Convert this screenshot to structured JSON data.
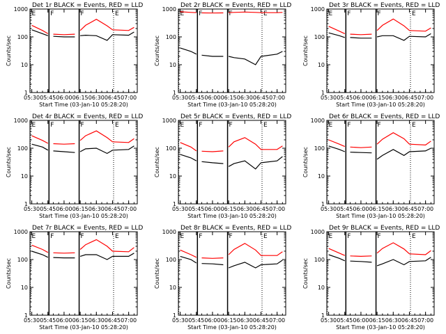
{
  "figure": {
    "xlabel": "Start Time (03-Jan-10 05:28:20)",
    "ylabel": "Counts/sec",
    "x_ticks": [
      "05:30",
      "05:45",
      "06:00",
      "06:15",
      "06:30",
      "06:45",
      "07:00"
    ],
    "y_ticks": [
      "1",
      "10",
      "100",
      "1000"
    ],
    "flags": [
      "E",
      "F",
      "F",
      "E"
    ],
    "colors": {
      "events": "#000000",
      "lld": "#ff0000"
    }
  },
  "chart_data": [
    {
      "type": "line",
      "title": "Det 1r BLACK = Events, RED = LLD",
      "x": [
        "05:30",
        "05:40",
        "05:45",
        "05:50",
        "06:00",
        "06:10",
        "06:15",
        "06:20",
        "06:30",
        "06:40",
        "06:45",
        "07:00",
        "07:05"
      ],
      "xlim": [
        "05:28:20",
        "07:08"
      ],
      "ylim": [
        1,
        1000
      ],
      "yscale": "log",
      "series": [
        {
          "values": [
            260,
            170,
            130,
            125,
            120,
            125,
            170,
            260,
            430,
            250,
            180,
            170,
            220
          ]
        },
        {
          "values": [
            180,
            130,
            110,
            105,
            100,
            100,
            110,
            115,
            110,
            75,
            120,
            115,
            150
          ]
        }
      ]
    },
    {
      "type": "line",
      "title": "Det 2r BLACK = Events, RED = LLD",
      "x": [
        "05:30",
        "05:40",
        "05:45",
        "05:50",
        "06:00",
        "06:10",
        "06:15",
        "06:20",
        "06:30",
        "06:40",
        "06:45",
        "07:00",
        "07:05"
      ],
      "xlim": [
        "05:28:20",
        "07:08"
      ],
      "ylim": [
        1,
        1000
      ],
      "yscale": "log",
      "series": [
        {
          "values": [
            800,
            760,
            740,
            730,
            720,
            730,
            740,
            760,
            780,
            760,
            740,
            740,
            760
          ]
        },
        {
          "values": [
            40,
            30,
            24,
            22,
            20,
            20,
            20,
            18,
            16,
            10,
            20,
            24,
            30
          ]
        }
      ]
    },
    {
      "type": "line",
      "title": "Det 3r BLACK = Events, RED = LLD",
      "x": [
        "05:30",
        "05:40",
        "05:45",
        "05:50",
        "06:00",
        "06:10",
        "06:15",
        "06:20",
        "06:30",
        "06:40",
        "06:45",
        "07:00",
        "07:05"
      ],
      "xlim": [
        "05:28:20",
        "07:08"
      ],
      "ylim": [
        1,
        1000
      ],
      "yscale": "log",
      "series": [
        {
          "values": [
            240,
            160,
            130,
            125,
            120,
            125,
            170,
            260,
            440,
            250,
            170,
            160,
            210
          ]
        },
        {
          "values": [
            140,
            110,
            95,
            95,
            90,
            90,
            100,
            110,
            110,
            75,
            105,
            100,
            130
          ]
        }
      ]
    },
    {
      "type": "line",
      "title": "Det 4r BLACK = Events, RED = LLD",
      "x": [
        "05:30",
        "05:40",
        "05:45",
        "05:50",
        "06:00",
        "06:10",
        "06:15",
        "06:20",
        "06:30",
        "06:40",
        "06:45",
        "07:00",
        "07:05"
      ],
      "xlim": [
        "05:28:20",
        "07:08"
      ],
      "ylim": [
        1,
        1000
      ],
      "yscale": "log",
      "series": [
        {
          "values": [
            280,
            190,
            150,
            145,
            140,
            145,
            190,
            280,
            420,
            240,
            170,
            160,
            220
          ]
        },
        {
          "values": [
            140,
            110,
            85,
            80,
            75,
            70,
            75,
            95,
            100,
            65,
            85,
            90,
            120
          ]
        }
      ]
    },
    {
      "type": "line",
      "title": "Det 5r BLACK = Events, RED = LLD",
      "x": [
        "05:30",
        "05:40",
        "05:45",
        "05:50",
        "06:00",
        "06:10",
        "06:15",
        "06:20",
        "06:30",
        "06:40",
        "06:45",
        "07:00",
        "07:05"
      ],
      "xlim": [
        "05:28:20",
        "07:08"
      ],
      "ylim": [
        1,
        1000
      ],
      "yscale": "log",
      "series": [
        {
          "values": [
            160,
            110,
            80,
            78,
            75,
            80,
            110,
            170,
            240,
            140,
            90,
            90,
            120
          ]
        },
        {
          "values": [
            60,
            45,
            35,
            33,
            30,
            28,
            22,
            28,
            35,
            18,
            30,
            35,
            50
          ]
        }
      ]
    },
    {
      "type": "line",
      "title": "Det 6r BLACK = Events, RED = LLD",
      "x": [
        "05:30",
        "05:40",
        "05:45",
        "05:50",
        "06:00",
        "06:10",
        "06:15",
        "06:20",
        "06:30",
        "06:40",
        "06:45",
        "07:00",
        "07:05"
      ],
      "xlim": [
        "05:28:20",
        "07:08"
      ],
      "ylim": [
        1,
        1000
      ],
      "yscale": "log",
      "series": [
        {
          "values": [
            200,
            140,
            115,
            110,
            105,
            110,
            140,
            210,
            360,
            220,
            140,
            130,
            180
          ]
        },
        {
          "values": [
            120,
            90,
            75,
            72,
            70,
            68,
            40,
            55,
            90,
            55,
            75,
            80,
            100
          ]
        }
      ]
    },
    {
      "type": "line",
      "title": "Det 7r BLACK = Events, RED = LLD",
      "x": [
        "05:30",
        "05:40",
        "05:45",
        "05:50",
        "06:00",
        "06:10",
        "06:15",
        "06:20",
        "06:30",
        "06:40",
        "06:45",
        "07:00",
        "07:05"
      ],
      "xlim": [
        "05:28:20",
        "07:08"
      ],
      "ylim": [
        1,
        1000
      ],
      "yscale": "log",
      "series": [
        {
          "values": [
            330,
            230,
            180,
            175,
            170,
            175,
            230,
            340,
            520,
            300,
            200,
            190,
            270
          ]
        },
        {
          "values": [
            200,
            150,
            120,
            118,
            115,
            115,
            130,
            150,
            150,
            100,
            130,
            130,
            170
          ]
        }
      ]
    },
    {
      "type": "line",
      "title": "Det 8r BLACK = Events, RED = LLD",
      "x": [
        "05:30",
        "05:40",
        "05:45",
        "05:50",
        "06:00",
        "06:10",
        "06:15",
        "06:20",
        "06:30",
        "06:40",
        "06:45",
        "07:00",
        "07:05"
      ],
      "xlim": [
        "05:28:20",
        "07:08"
      ],
      "ylim": [
        1,
        1000
      ],
      "yscale": "log",
      "series": [
        {
          "values": [
            220,
            150,
            120,
            115,
            110,
            115,
            150,
            230,
            380,
            220,
            140,
            140,
            190
          ]
        },
        {
          "values": [
            130,
            100,
            75,
            72,
            70,
            65,
            50,
            60,
            80,
            50,
            65,
            70,
            95
          ]
        }
      ]
    },
    {
      "type": "line",
      "title": "Det 9r BLACK = Events, RED = LLD",
      "x": [
        "05:30",
        "05:40",
        "05:45",
        "05:50",
        "06:00",
        "06:10",
        "06:15",
        "06:20",
        "06:30",
        "06:40",
        "06:45",
        "07:00",
        "07:05"
      ],
      "xlim": [
        "05:28:20",
        "07:08"
      ],
      "ylim": [
        1,
        1000
      ],
      "yscale": "log",
      "series": [
        {
          "values": [
            250,
            170,
            140,
            135,
            130,
            135,
            170,
            250,
            400,
            240,
            160,
            150,
            210
          ]
        },
        {
          "values": [
            150,
            110,
            90,
            88,
            85,
            80,
            60,
            70,
            100,
            65,
            85,
            90,
            120
          ]
        }
      ]
    }
  ]
}
